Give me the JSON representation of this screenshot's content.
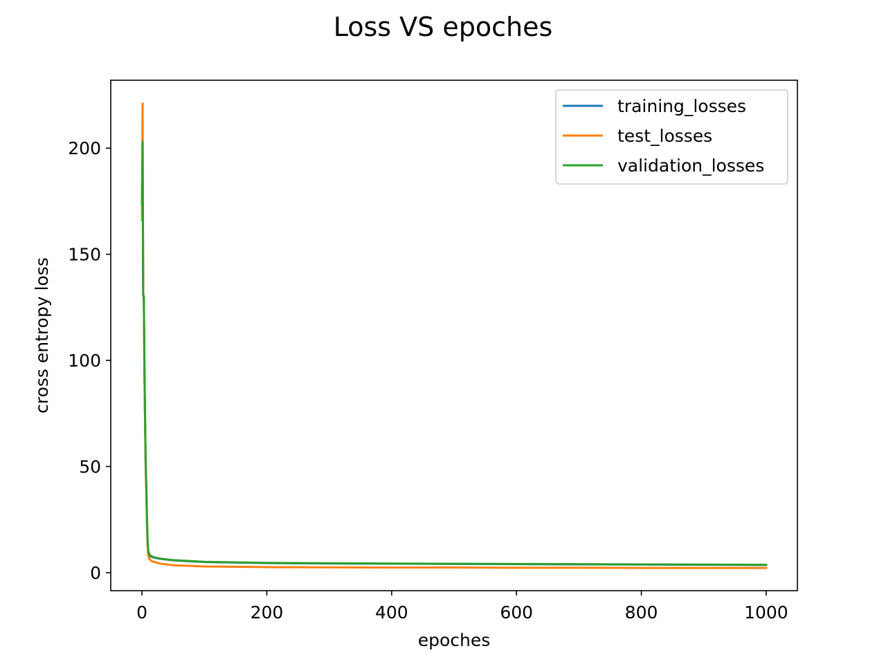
{
  "chart_data": {
    "type": "line",
    "title": "Loss VS epoches",
    "xlabel": "epoches",
    "ylabel": "cross entropy loss",
    "xlim": [
      -50,
      1050
    ],
    "ylim": [
      -8.5,
      232
    ],
    "x_ticks": [
      0,
      200,
      400,
      600,
      800,
      1000
    ],
    "y_ticks": [
      0,
      50,
      100,
      150,
      200
    ],
    "grid": false,
    "legend_position": "top-right",
    "series": [
      {
        "name": "training_losses",
        "color": "#1f77b4",
        "x": [
          0,
          1,
          2,
          3,
          4,
          5,
          6,
          7,
          8,
          9,
          10,
          12,
          15,
          20,
          30,
          50,
          100,
          200,
          300,
          400,
          500,
          600,
          700,
          800,
          900,
          1000
        ],
        "y": [
          175,
          200,
          131,
          130,
          95,
          72,
          50,
          40,
          25,
          15,
          10,
          8,
          7.5,
          7,
          6.5,
          5.8,
          5.0,
          4.5,
          4.3,
          4.2,
          4.1,
          4.0,
          3.9,
          3.8,
          3.7,
          3.6
        ]
      },
      {
        "name": "test_losses",
        "color": "#ff7f0e",
        "x": [
          0,
          1,
          2,
          3,
          4,
          5,
          6,
          7,
          8,
          9,
          10,
          12,
          15,
          20,
          30,
          50,
          100,
          200,
          300,
          400,
          500,
          600,
          700,
          800,
          900,
          1000
        ],
        "y": [
          166,
          221,
          132,
          128,
          92,
          70,
          48,
          38,
          22,
          13,
          8,
          6.5,
          5.5,
          5.0,
          4.2,
          3.5,
          2.9,
          2.6,
          2.5,
          2.4,
          2.4,
          2.3,
          2.3,
          2.2,
          2.2,
          2.2
        ]
      },
      {
        "name": "validation_losses",
        "color": "#2ca02c",
        "x": [
          0,
          1,
          2,
          3,
          4,
          5,
          6,
          7,
          8,
          9,
          10,
          12,
          15,
          20,
          30,
          50,
          100,
          200,
          300,
          400,
          500,
          600,
          700,
          800,
          900,
          1000
        ],
        "y": [
          173,
          203,
          131,
          130,
          96,
          73,
          51,
          41,
          26,
          16,
          10.5,
          8.5,
          7.8,
          7.2,
          6.6,
          5.9,
          5.1,
          4.6,
          4.4,
          4.3,
          4.2,
          4.1,
          4.0,
          3.9,
          3.8,
          3.7
        ]
      }
    ]
  }
}
